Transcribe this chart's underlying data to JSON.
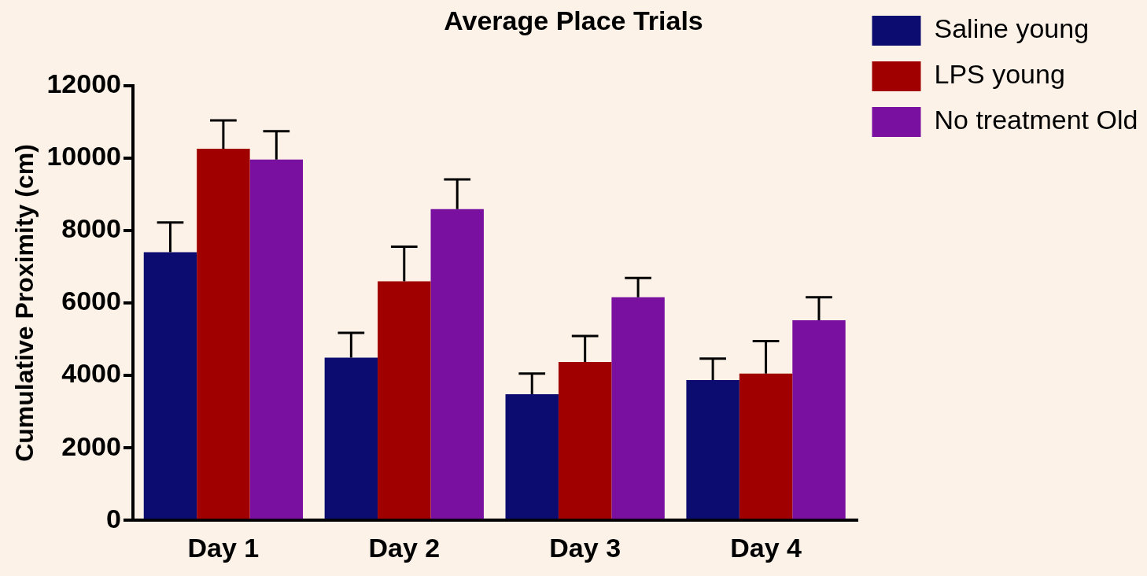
{
  "chart_data": {
    "type": "bar",
    "title": "Average Place Trials",
    "ylabel": "Cumulative Proximity (cm)",
    "categories": [
      "Day 1",
      "Day 2",
      "Day 3",
      "Day 4"
    ],
    "series": [
      {
        "name": "Saline young",
        "color": "#0c0c70",
        "values": [
          7400,
          4490,
          3480,
          3870
        ],
        "errors": [
          [
            7400,
            8220
          ],
          [
            4490,
            5175
          ],
          [
            3480,
            4050
          ],
          [
            3870,
            4465
          ]
        ]
      },
      {
        "name": "LPS young",
        "color": "#a00000",
        "values": [
          10260,
          6600,
          4370,
          4050
        ],
        "errors": [
          [
            10260,
            11040
          ],
          [
            6600,
            7555
          ],
          [
            4370,
            5085
          ],
          [
            4050,
            4945
          ]
        ]
      },
      {
        "name": "No treatment Old",
        "color": "#7a10a0",
        "values": [
          9960,
          8590,
          6160,
          5520
        ],
        "errors": [
          [
            9960,
            10740
          ],
          [
            8590,
            9410
          ],
          [
            6160,
            6690
          ],
          [
            5520,
            6160
          ]
        ]
      }
    ],
    "ylim": [
      0,
      12000
    ],
    "yticks": [
      0,
      2000,
      4000,
      6000,
      8000,
      10000,
      12000
    ],
    "grid": false,
    "legend": "right"
  }
}
